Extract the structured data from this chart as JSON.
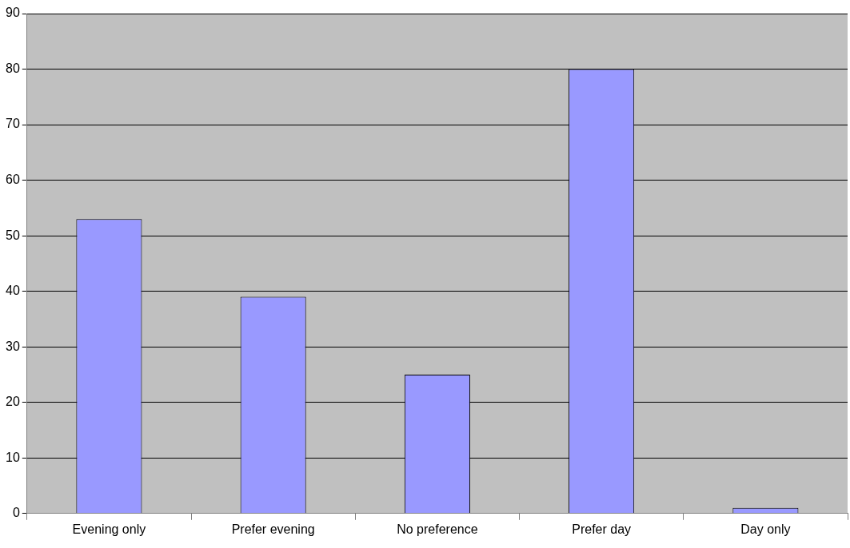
{
  "chart_data": {
    "type": "bar",
    "categories": [
      "Evening only",
      "Prefer evening",
      "No preference",
      "Prefer day",
      "Day only"
    ],
    "values": [
      53,
      39,
      25,
      80,
      1
    ],
    "color": "#9999ff",
    "ylim": [
      0,
      90
    ],
    "yticks": [
      0,
      10,
      20,
      30,
      40,
      50,
      60,
      70,
      80,
      90
    ],
    "grid": "y",
    "legend": false
  }
}
